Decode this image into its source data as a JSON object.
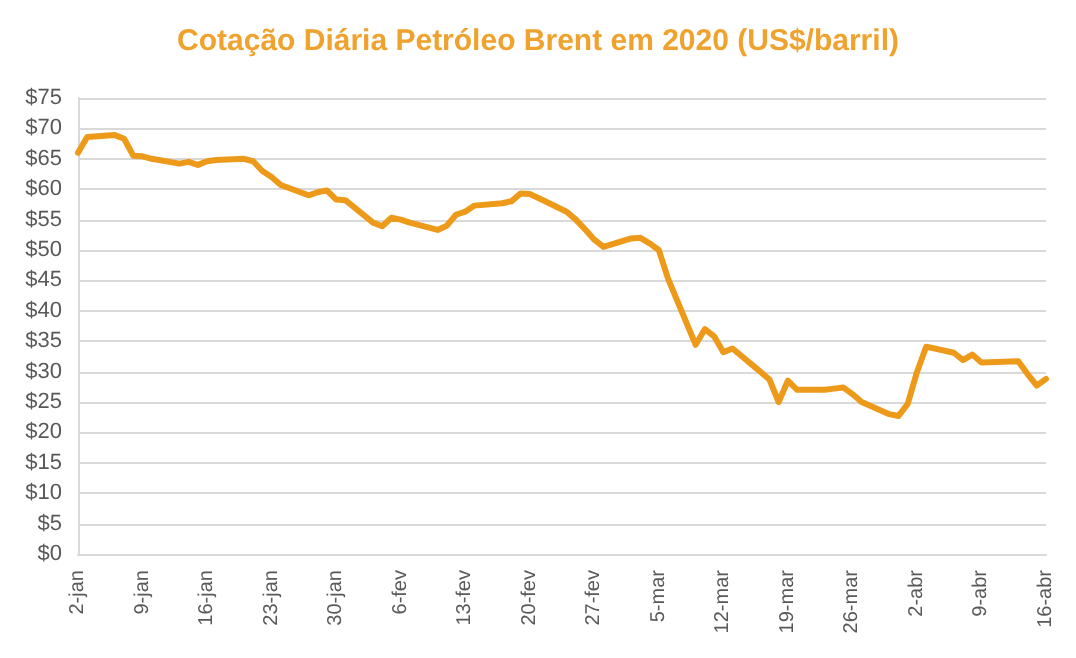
{
  "chart_data": {
    "type": "line",
    "title": "Cotação Diária Petróleo Brent em 2020 (US$/barril)",
    "x": [
      "2020-01-02",
      "2020-01-03",
      "2020-01-06",
      "2020-01-07",
      "2020-01-08",
      "2020-01-09",
      "2020-01-10",
      "2020-01-13",
      "2020-01-14",
      "2020-01-15",
      "2020-01-16",
      "2020-01-17",
      "2020-01-20",
      "2020-01-21",
      "2020-01-22",
      "2020-01-23",
      "2020-01-24",
      "2020-01-27",
      "2020-01-28",
      "2020-01-29",
      "2020-01-30",
      "2020-01-31",
      "2020-02-03",
      "2020-02-04",
      "2020-02-05",
      "2020-02-06",
      "2020-02-07",
      "2020-02-10",
      "2020-02-11",
      "2020-02-12",
      "2020-02-13",
      "2020-02-14",
      "2020-02-17",
      "2020-02-18",
      "2020-02-19",
      "2020-02-20",
      "2020-02-21",
      "2020-02-24",
      "2020-02-25",
      "2020-02-26",
      "2020-02-27",
      "2020-02-28",
      "2020-03-02",
      "2020-03-03",
      "2020-03-04",
      "2020-03-05",
      "2020-03-06",
      "2020-03-09",
      "2020-03-10",
      "2020-03-11",
      "2020-03-12",
      "2020-03-13",
      "2020-03-16",
      "2020-03-17",
      "2020-03-18",
      "2020-03-19",
      "2020-03-20",
      "2020-03-23",
      "2020-03-24",
      "2020-03-25",
      "2020-03-26",
      "2020-03-27",
      "2020-03-30",
      "2020-03-31",
      "2020-04-01",
      "2020-04-02",
      "2020-04-03",
      "2020-04-06",
      "2020-04-07",
      "2020-04-08",
      "2020-04-09",
      "2020-04-13",
      "2020-04-14",
      "2020-04-15",
      "2020-04-16"
    ],
    "series": [
      {
        "color": "#ed9a1b",
        "values": [
          66,
          68.6,
          68.9,
          68.3,
          65.5,
          65.4,
          65,
          64.2,
          64.5,
          64,
          64.6,
          64.8,
          65,
          64.6,
          63,
          62,
          60.7,
          59,
          59.5,
          59.8,
          58.3,
          58.2,
          54.5,
          53.9,
          55.3,
          55,
          54.5,
          53.3,
          54,
          55.8,
          56.3,
          57.3,
          57.7,
          58,
          59.3,
          59.2,
          58.5,
          56.3,
          55,
          53.4,
          51.7,
          50.5,
          51.9,
          52,
          51.1,
          50,
          45.3,
          34.4,
          37,
          35.8,
          33.2,
          33.8,
          30,
          28.7,
          25,
          28.5,
          27,
          27,
          27.2,
          27.4,
          26.3,
          25,
          23,
          22.7,
          24.7,
          29.9,
          34.1,
          33.1,
          31.9,
          32.8,
          31.5,
          31.7,
          29.6,
          27.7,
          28.8
        ]
      }
    ],
    "xlim": [
      "2020-01-02",
      "2020-04-16"
    ],
    "xticks": [
      {
        "value": "2020-01-02",
        "label": "2-jan"
      },
      {
        "value": "2020-01-09",
        "label": "9-jan"
      },
      {
        "value": "2020-01-16",
        "label": "16-jan"
      },
      {
        "value": "2020-01-23",
        "label": "23-jan"
      },
      {
        "value": "2020-01-30",
        "label": "30-jan"
      },
      {
        "value": "2020-02-06",
        "label": "6-fev"
      },
      {
        "value": "2020-02-13",
        "label": "13-fev"
      },
      {
        "value": "2020-02-20",
        "label": "20-fev"
      },
      {
        "value": "2020-02-27",
        "label": "27-fev"
      },
      {
        "value": "2020-03-05",
        "label": "5-mar"
      },
      {
        "value": "2020-03-12",
        "label": "12-mar"
      },
      {
        "value": "2020-03-19",
        "label": "19-mar"
      },
      {
        "value": "2020-03-26",
        "label": "26-mar"
      },
      {
        "value": "2020-04-02",
        "label": "2-abr"
      },
      {
        "value": "2020-04-09",
        "label": "9-abr"
      },
      {
        "value": "2020-04-16",
        "label": "16-abr"
      }
    ],
    "ylim": [
      0,
      75
    ],
    "yticks": [
      {
        "value": 0,
        "label": "$0"
      },
      {
        "value": 5,
        "label": "$5"
      },
      {
        "value": 10,
        "label": "$10"
      },
      {
        "value": 15,
        "label": "$15"
      },
      {
        "value": 20,
        "label": "$20"
      },
      {
        "value": 25,
        "label": "$25"
      },
      {
        "value": 30,
        "label": "$30"
      },
      {
        "value": 35,
        "label": "$35"
      },
      {
        "value": 40,
        "label": "$40"
      },
      {
        "value": 45,
        "label": "$45"
      },
      {
        "value": 50,
        "label": "$50"
      },
      {
        "value": 55,
        "label": "$55"
      },
      {
        "value": 60,
        "label": "$60"
      },
      {
        "value": 65,
        "label": "$65"
      },
      {
        "value": 70,
        "label": "$70"
      },
      {
        "value": 75,
        "label": "$75"
      }
    ],
    "grid": "y",
    "marker": "none",
    "line_style": "solid"
  }
}
